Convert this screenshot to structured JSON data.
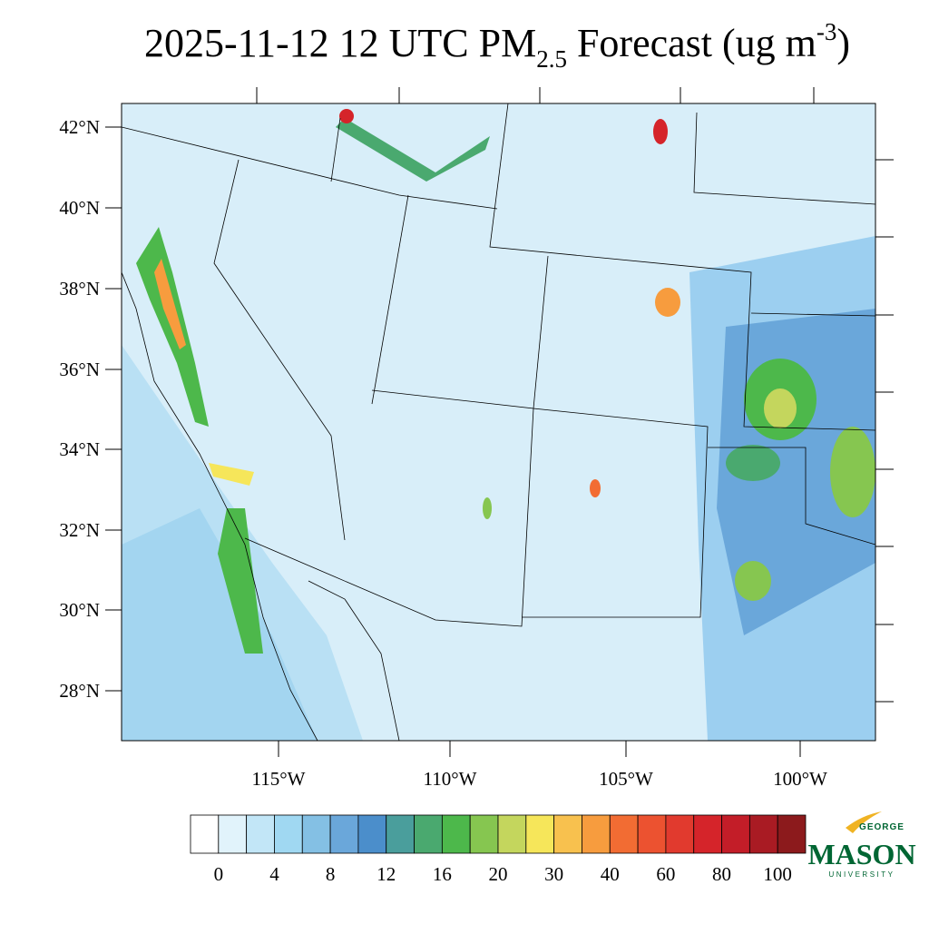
{
  "title": {
    "main": "2025-11-12 12 UTC PM",
    "sub": "2.5",
    "rest": " Forecast (ug m",
    "sup": "-3",
    "end": ")"
  },
  "map": {
    "lat_labels": [
      "42°N",
      "40°N",
      "38°N",
      "36°N",
      "34°N",
      "32°N",
      "30°N",
      "28°N"
    ],
    "lon_labels": [
      "115°W",
      "110°W",
      "105°W",
      "100°W"
    ]
  },
  "colorbar": {
    "colors": [
      "#ffffff",
      "#e1f3fb",
      "#c2e6f7",
      "#a0d8f2",
      "#84c0e4",
      "#6aa7da",
      "#4b8ecb",
      "#4a9e9c",
      "#4aa96f",
      "#4db84b",
      "#86c650",
      "#c4d65d",
      "#f6e65a",
      "#f8c14e",
      "#f79c3e",
      "#f26c33",
      "#ec5230",
      "#e13a2e",
      "#d5242a",
      "#c31d28",
      "#a91b23",
      "#8c1a1c"
    ],
    "ticks": [
      0,
      4,
      8,
      12,
      16,
      20,
      30,
      40,
      60,
      80,
      100
    ]
  },
  "logo": {
    "top": "GEORGE",
    "main": "MASON",
    "bottom": "UNIVERSITY"
  }
}
